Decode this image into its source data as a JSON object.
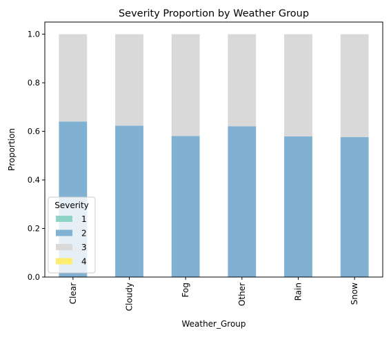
{
  "chart_data": {
    "type": "bar",
    "stacked": true,
    "title": "Severity Proportion by Weather Group",
    "xlabel": "Weather_Group",
    "ylabel": "Proportion",
    "ylim": [
      0,
      1.05
    ],
    "yticks": [
      0.0,
      0.2,
      0.4,
      0.6,
      0.8,
      1.0
    ],
    "ytick_labels": [
      "0.0",
      "0.2",
      "0.4",
      "0.6",
      "0.8",
      "1.0"
    ],
    "categories": [
      "Clear",
      "Cloudy",
      "Fog",
      "Other",
      "Rain",
      "Snow"
    ],
    "legend": {
      "title": "Severity",
      "placement": "lower-left"
    },
    "grid": false,
    "series": [
      {
        "name": "1",
        "color": "#8dd3c7",
        "values": [
          0.0,
          0.0,
          0.0,
          0.0,
          0.0,
          0.0
        ]
      },
      {
        "name": "2",
        "color": "#80b1d3",
        "values": [
          0.64,
          0.623,
          0.581,
          0.621,
          0.579,
          0.576
        ]
      },
      {
        "name": "3",
        "color": "#d9d9d9",
        "values": [
          0.36,
          0.377,
          0.419,
          0.379,
          0.421,
          0.424
        ]
      },
      {
        "name": "4",
        "color": "#ffed6f",
        "values": [
          0.0,
          0.0,
          0.0,
          0.0,
          0.0,
          0.0
        ]
      }
    ]
  }
}
